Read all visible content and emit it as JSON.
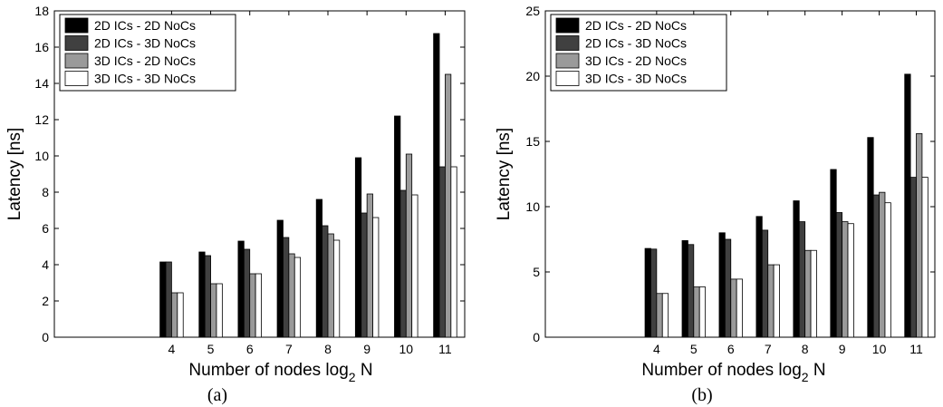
{
  "chart_data": [
    {
      "type": "bar",
      "caption": "(a)",
      "xlabel_main": "Number of nodes log",
      "xlabel_sub": "2",
      "xlabel_tail": " N",
      "ylabel": "Latency [ns]",
      "categories": [
        "4",
        "5",
        "6",
        "7",
        "8",
        "9",
        "10",
        "11"
      ],
      "ylim": [
        0,
        18
      ],
      "yticks": [
        "0",
        "2",
        "4",
        "6",
        "8",
        "10",
        "12",
        "14",
        "16",
        "18"
      ],
      "x_range": [
        1,
        11.5
      ],
      "legend_position": "top-left",
      "series": [
        {
          "name": "2D ICs - 2D NoCs",
          "color": "#000000",
          "values": [
            4.15,
            4.7,
            5.3,
            6.45,
            7.6,
            9.9,
            12.2,
            16.75
          ]
        },
        {
          "name": "2D ICs - 3D NoCs",
          "color": "#404040",
          "values": [
            4.15,
            4.5,
            4.85,
            5.5,
            6.15,
            6.85,
            8.1,
            9.4
          ]
        },
        {
          "name": "3D ICs - 2D NoCs",
          "color": "#9a9a9a",
          "values": [
            2.45,
            2.95,
            3.5,
            4.6,
            5.7,
            7.9,
            10.1,
            14.5
          ]
        },
        {
          "name": "3D ICs - 3D NoCs",
          "color": "#ffffff",
          "values": [
            2.45,
            2.95,
            3.5,
            4.4,
            5.35,
            6.6,
            7.85,
            9.4
          ]
        }
      ]
    },
    {
      "type": "bar",
      "caption": "(b)",
      "xlabel_main": "Number of nodes log",
      "xlabel_sub": "2",
      "xlabel_tail": " N",
      "ylabel": "Latency [ns]",
      "categories": [
        "4",
        "5",
        "6",
        "7",
        "8",
        "9",
        "10",
        "11"
      ],
      "ylim": [
        0,
        25
      ],
      "yticks": [
        "0",
        "5",
        "10",
        "15",
        "20",
        "25"
      ],
      "x_range": [
        1,
        11.5
      ],
      "legend_position": "top-left",
      "series": [
        {
          "name": "2D ICs - 2D NoCs",
          "color": "#000000",
          "values": [
            6.8,
            7.4,
            8.0,
            9.25,
            10.45,
            12.85,
            15.3,
            20.15
          ]
        },
        {
          "name": "2D ICs - 3D NoCs",
          "color": "#404040",
          "values": [
            6.75,
            7.1,
            7.5,
            8.2,
            8.85,
            9.55,
            10.9,
            12.25
          ]
        },
        {
          "name": "3D ICs - 2D NoCs",
          "color": "#9a9a9a",
          "values": [
            3.35,
            3.85,
            4.45,
            5.55,
            6.65,
            8.85,
            11.1,
            15.6
          ]
        },
        {
          "name": "3D ICs - 3D NoCs",
          "color": "#ffffff",
          "values": [
            3.35,
            3.85,
            4.45,
            5.55,
            6.65,
            8.7,
            10.3,
            12.25
          ]
        }
      ]
    }
  ]
}
